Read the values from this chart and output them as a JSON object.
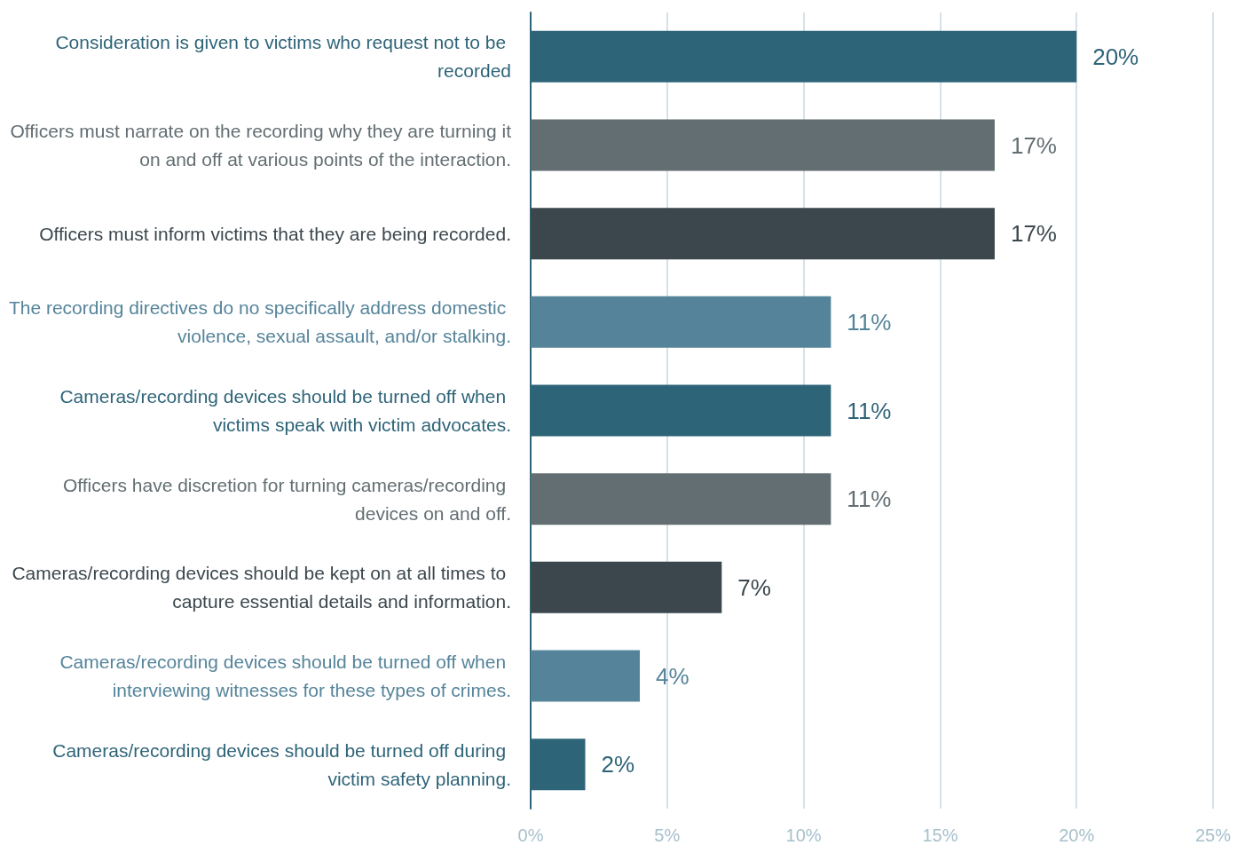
{
  "chart_data": {
    "type": "bar",
    "orientation": "horizontal",
    "categories": [
      "Consideration is given to victims who request not to be recorded",
      "Officers must narrate on the recording why they are turning it on and off at various points of the interaction.",
      "Officers must inform victims that they are being recorded.",
      "The recording directives do no specifically address domestic violence, sexual assault, and/or stalking.",
      "Cameras/recording devices should be turned off when victims speak with victim advocates.",
      "Officers have discretion for turning cameras/recording devices on and off.",
      "Cameras/recording devices should be kept on at all times to capture essential details and information.",
      "Cameras/recording devices should be turned off when interviewing witnesses for these types of crimes.",
      "Cameras/recording devices should be turned off during victim safety planning."
    ],
    "values": [
      20,
      17,
      17,
      11,
      11,
      11,
      7,
      4,
      2
    ],
    "colors": [
      "#2e6478",
      "#636e72",
      "#3b474d",
      "#55849a",
      "#2e6478",
      "#636e72",
      "#3b474d",
      "#55849a",
      "#2e6478"
    ],
    "xlim": [
      0,
      25
    ],
    "xticks": [
      {
        "value": 0,
        "label": "0%"
      },
      {
        "value": 5,
        "label": "5%"
      },
      {
        "value": 10,
        "label": "10%"
      },
      {
        "value": 15,
        "label": "15%"
      },
      {
        "value": 20,
        "label": "20%"
      },
      {
        "value": 25,
        "label": "25%"
      }
    ],
    "value_labels": [
      "20%",
      "17%",
      "17%",
      "11%",
      "11%",
      "11%",
      "7%",
      "4%",
      "2%"
    ],
    "grid": "x"
  }
}
